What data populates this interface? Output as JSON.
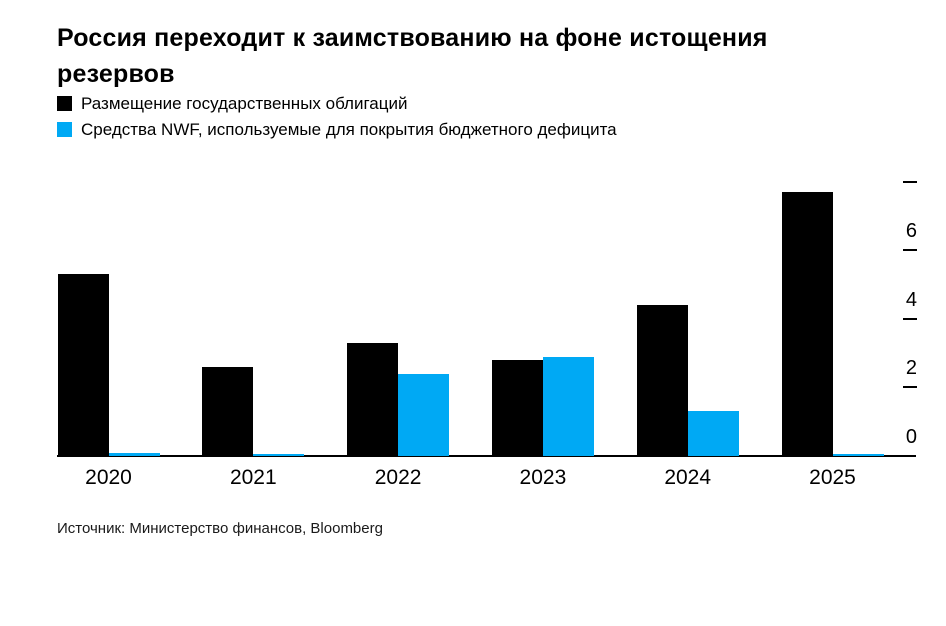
{
  "title_line1": "Россия переходит к заимствованию на фоне истощения",
  "title_line2": "резервов",
  "legend": [
    {
      "label": "Размещение государственных облигаций",
      "color": "#000000",
      "icon": "black-square-swatch"
    },
    {
      "label": "Средства NWF, используемые для покрытия бюджетного дефицита",
      "color": "#00a9f4",
      "icon": "blue-square-swatch"
    }
  ],
  "source": "Источник: Министерство финансов, Bloomberg",
  "colors": {
    "bonds_series": "#000000",
    "nwf_series": "#00a9f4",
    "axis": "#000000",
    "background": "#ffffff"
  },
  "chart_data": {
    "type": "bar",
    "title": "Россия переходит к заимствованию на фоне истощения резервов",
    "categories": [
      "2020",
      "2021",
      "2022",
      "2023",
      "2024",
      "2025"
    ],
    "series": [
      {
        "name": "Размещение государственных облигаций",
        "color": "#000000",
        "values": [
          5.3,
          2.6,
          3.3,
          2.8,
          4.4,
          7.7
        ]
      },
      {
        "name": "Средства NWF, используемые для покрытия бюджетного дефицита",
        "color": "#00a9f4",
        "values": [
          0.1,
          0.05,
          2.4,
          2.9,
          1.3,
          0.05
        ]
      }
    ],
    "xlabel": "",
    "ylabel": "",
    "ylim": [
      0,
      8
    ],
    "yticks_labeled": [
      0,
      2,
      4,
      6
    ],
    "ytick_unlabeled_top": 8,
    "ytick_side": "right",
    "grid": false,
    "legend_position": "top-left"
  }
}
